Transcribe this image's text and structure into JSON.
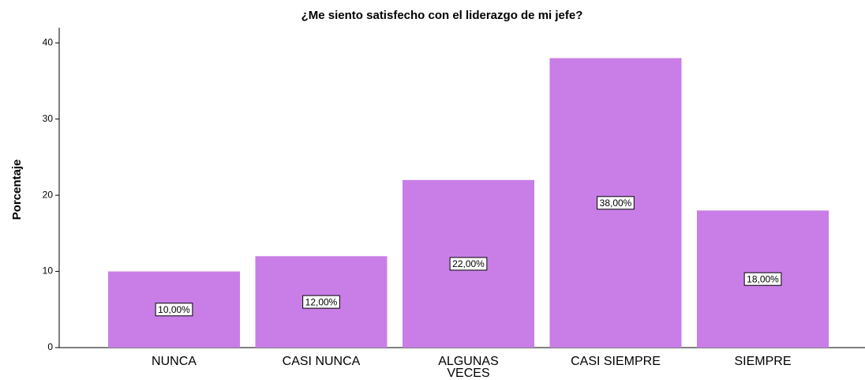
{
  "chart_data": {
    "type": "bar",
    "title": "¿Me siento satisfecho con el liderazgo de mi jefe?",
    "ylabel": "Porcentaje",
    "categories": [
      "NUNCA",
      "CASI NUNCA",
      "ALGUNAS\nVECES",
      "CASI SIEMPRE",
      "SIEMPRE"
    ],
    "values": [
      10,
      12,
      22,
      38,
      18
    ],
    "value_labels": [
      "10,00%",
      "12,00%",
      "22,00%",
      "38,00%",
      "18,00%"
    ],
    "color": "#c87ee6",
    "ylim": [
      0,
      42
    ],
    "yticks": [
      0,
      10,
      20,
      30,
      40
    ],
    "grid": false
  }
}
